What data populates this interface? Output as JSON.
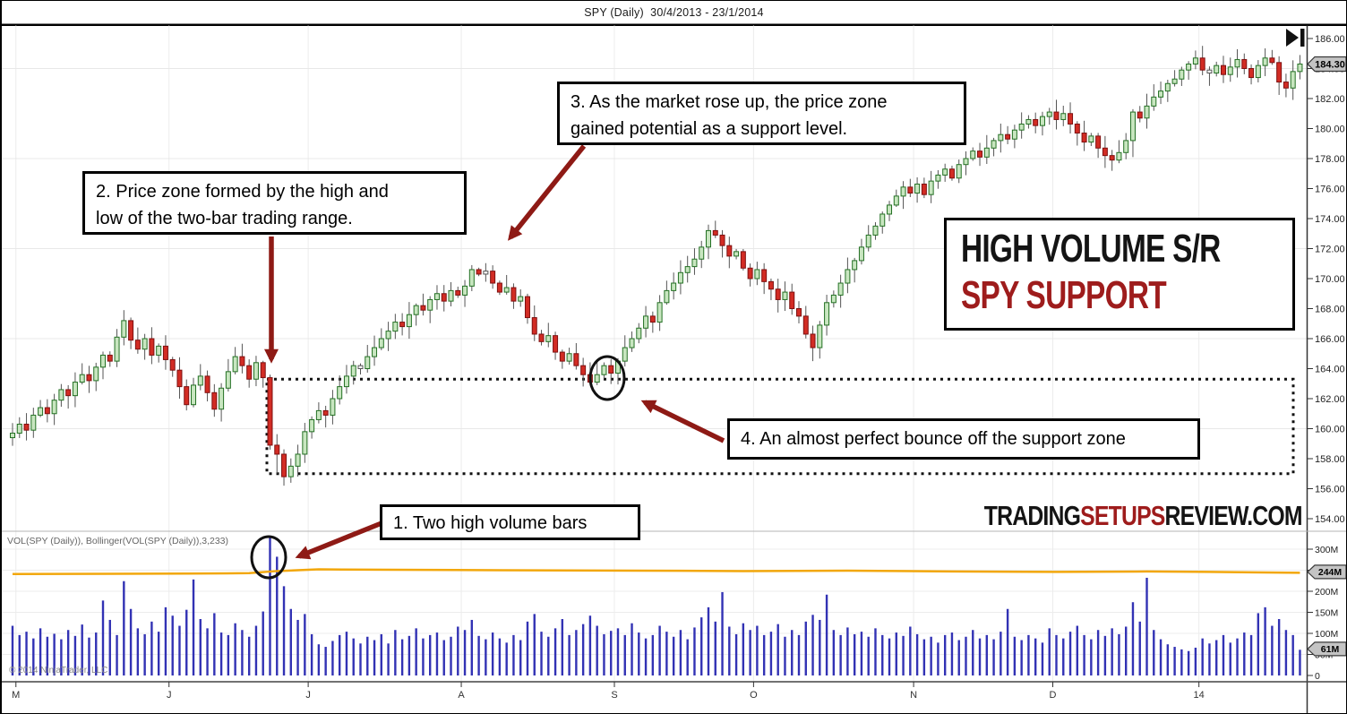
{
  "window": {
    "title": "SPY (Daily)  30/4/2013 - 23/1/2014"
  },
  "annotations": {
    "note1": {
      "text": "1. Two high volume bars"
    },
    "note2": {
      "line1": "2. Price zone formed by the high and",
      "line2": "low of the two-bar trading range."
    },
    "note3": {
      "line1": "3. As the market rose up, the price zone",
      "line2": "gained potential as a support level."
    },
    "note4": {
      "text": "4. An almost perfect bounce off the support zone"
    },
    "banner": {
      "line1": "HIGH VOLUME S/R",
      "line2": "SPY SUPPORT"
    },
    "watermark": {
      "part1": "TRADING",
      "part2": "SETUPS",
      "part3": "REVIEW.COM"
    }
  },
  "panels": {
    "volume_indicator_label": "VOL(SPY (Daily)), Bollinger(VOL(SPY (Daily)),3,233)",
    "copyright": "© 2014 NinjaTrader, LLC"
  },
  "colors": {
    "up_fill": "#c8e6c0",
    "up_stroke": "#237023",
    "down_fill": "#d22c24",
    "down_stroke": "#7e1010",
    "doji_fill": "#fafafa",
    "wick": "#555555",
    "volume_bar": "#3232b4",
    "bollinger_line": "#f2a70c",
    "annotation_red": "#8E1A15",
    "banner_red": "#9E1C1C",
    "tag_bg": "#c4c4c4",
    "grid": "#ececec"
  },
  "chart_data": {
    "type": "candlestick+volume",
    "symbol": "SPY",
    "timeframe": "Daily",
    "date_range": "30/4/2013 - 23/1/2014",
    "bar_count": 186,
    "price_ylim": [
      154,
      186.5
    ],
    "price_axis_labels": [
      "186.00",
      "184.00",
      "182.00",
      "180.00",
      "178.00",
      "176.00",
      "174.00",
      "172.00",
      "170.00",
      "168.00",
      "166.00",
      "164.00",
      "162.00",
      "160.00",
      "158.00",
      "156.00",
      "154.00"
    ],
    "price_gridline_values": [
      184,
      178,
      172,
      166,
      160
    ],
    "volume_ylim": [
      0,
      340
    ],
    "volume_axis_labels": [
      {
        "label": "300M",
        "value": 300
      },
      {
        "label": "250M",
        "value": 250
      },
      {
        "label": "200M",
        "value": 200
      },
      {
        "label": "150M",
        "value": 150
      },
      {
        "label": "100M",
        "value": 100
      },
      {
        "label": "50M",
        "value": 50
      },
      {
        "label": "0",
        "value": 0
      }
    ],
    "volume_gridline_values": [
      50,
      100,
      150,
      200,
      250,
      300
    ],
    "months": [
      {
        "label": "M",
        "start_index": 1
      },
      {
        "label": "J",
        "start_index": 23
      },
      {
        "label": "J",
        "start_index": 43
      },
      {
        "label": "A",
        "start_index": 65
      },
      {
        "label": "S",
        "start_index": 87
      },
      {
        "label": "O",
        "start_index": 107
      },
      {
        "label": "N",
        "start_index": 130
      },
      {
        "label": "D",
        "start_index": 150
      },
      {
        "label": "14",
        "start_index": 171
      }
    ],
    "first_open": 159.4,
    "closes": [
      159.7,
      160.3,
      159.9,
      160.9,
      161.4,
      161.0,
      161.9,
      162.6,
      162.2,
      163.1,
      163.6,
      163.2,
      164.1,
      164.9,
      164.5,
      166.1,
      167.2,
      165.9,
      165.3,
      166.0,
      164.9,
      165.5,
      164.6,
      163.9,
      162.8,
      161.6,
      162.9,
      163.5,
      162.4,
      161.3,
      162.7,
      163.8,
      164.8,
      164.2,
      163.3,
      164.4,
      163.4,
      158.9,
      158.3,
      156.8,
      157.5,
      158.3,
      159.8,
      160.6,
      161.2,
      160.9,
      162.0,
      162.8,
      163.5,
      164.2,
      164.0,
      164.8,
      165.4,
      166.0,
      166.5,
      167.1,
      166.8,
      167.6,
      168.2,
      167.9,
      168.6,
      169.0,
      168.5,
      169.2,
      168.9,
      169.5,
      170.6,
      170.3,
      170.5,
      169.7,
      169.1,
      169.4,
      168.5,
      168.8,
      167.4,
      166.3,
      165.8,
      166.2,
      165.1,
      164.5,
      165.0,
      164.2,
      163.6,
      163.1,
      163.6,
      164.2,
      163.7,
      164.5,
      165.4,
      166.0,
      166.7,
      167.5,
      167.1,
      168.4,
      169.2,
      169.7,
      170.4,
      170.8,
      171.3,
      172.1,
      173.2,
      172.9,
      172.2,
      171.5,
      171.8,
      170.7,
      170.0,
      170.6,
      169.8,
      169.3,
      168.6,
      169.1,
      168.0,
      167.5,
      166.3,
      165.4,
      166.9,
      168.4,
      168.9,
      169.7,
      170.6,
      171.2,
      172.1,
      172.9,
      173.5,
      174.3,
      174.9,
      175.5,
      176.1,
      175.7,
      176.3,
      175.6,
      176.5,
      176.9,
      177.3,
      176.7,
      177.6,
      178.0,
      178.5,
      178.1,
      178.7,
      179.2,
      179.6,
      179.3,
      179.9,
      180.3,
      180.6,
      180.2,
      180.8,
      181.1,
      180.6,
      181.0,
      180.3,
      179.7,
      179.1,
      179.5,
      178.7,
      178.2,
      177.9,
      178.4,
      179.2,
      181.1,
      180.7,
      181.5,
      182.1,
      182.5,
      183.0,
      183.3,
      183.9,
      184.3,
      184.7,
      183.9,
      183.7,
      184.2,
      183.6,
      184.1,
      184.6,
      184.0,
      183.4,
      184.2,
      184.7,
      184.4,
      183.1,
      182.7,
      183.8,
      184.3
    ],
    "volumes_millions": [
      118,
      96,
      104,
      88,
      112,
      92,
      99,
      86,
      108,
      94,
      121,
      90,
      102,
      178,
      132,
      96,
      224,
      158,
      112,
      98,
      128,
      104,
      162,
      142,
      118,
      156,
      228,
      134,
      112,
      148,
      102,
      96,
      124,
      108,
      92,
      118,
      152,
      330,
      282,
      212,
      158,
      132,
      146,
      98,
      74,
      68,
      82,
      96,
      104,
      88,
      76,
      92,
      84,
      98,
      76,
      108,
      86,
      94,
      112,
      88,
      96,
      102,
      84,
      92,
      116,
      108,
      132,
      94,
      86,
      102,
      88,
      78,
      96,
      84,
      128,
      146,
      104,
      92,
      112,
      134,
      96,
      108,
      122,
      142,
      118,
      98,
      106,
      112,
      96,
      124,
      102,
      88,
      96,
      118,
      104,
      92,
      108,
      86,
      114,
      138,
      162,
      128,
      198,
      116,
      98,
      124,
      108,
      118,
      96,
      104,
      122,
      92,
      108,
      96,
      128,
      144,
      132,
      192,
      108,
      96,
      114,
      98,
      104,
      92,
      112,
      96,
      88,
      102,
      94,
      116,
      98,
      86,
      92,
      78,
      96,
      102,
      84,
      92,
      108,
      88,
      96,
      86,
      104,
      158,
      92,
      84,
      96,
      88,
      78,
      112,
      96,
      88,
      104,
      118,
      96,
      86,
      108,
      94,
      112,
      98,
      116,
      174,
      128,
      232,
      108,
      86,
      74,
      68,
      62,
      58,
      66,
      88,
      76,
      84,
      96,
      78,
      88,
      102,
      96,
      148,
      162,
      118,
      134,
      108,
      96,
      61
    ],
    "wick_overrides": {
      "16": {
        "high": 167.9
      },
      "37": {
        "high": 163.6
      },
      "38": {
        "low": 157.0
      },
      "39": {
        "low": 156.2
      },
      "66": {
        "high": 170.9
      },
      "84": {
        "low": 162.9
      },
      "100": {
        "high": 173.6
      },
      "115": {
        "low": 164.5
      },
      "161": {
        "low": 178.1
      },
      "170": {
        "high": 185.2
      },
      "185": {
        "high": 184.9
      }
    },
    "bollinger_upper_waypoints": [
      [
        0,
        241
      ],
      [
        25,
        242
      ],
      [
        34,
        243
      ],
      [
        38,
        248
      ],
      [
        44,
        252
      ],
      [
        55,
        251
      ],
      [
        70,
        250
      ],
      [
        90,
        249
      ],
      [
        105,
        248
      ],
      [
        120,
        249
      ],
      [
        135,
        247
      ],
      [
        150,
        246
      ],
      [
        163,
        247
      ],
      [
        172,
        246
      ],
      [
        185,
        244
      ]
    ],
    "support_zone": {
      "start_index": 37,
      "price_top": 163.3,
      "price_bottom": 157.0
    },
    "tags": {
      "last_price": {
        "text": "184.30",
        "value": 184.3
      },
      "bollinger_band": {
        "text": "244M",
        "value": 246
      },
      "last_volume": {
        "text": "61M",
        "value": 63
      }
    },
    "last_price": 184.3,
    "last_volume_millions": 61
  }
}
